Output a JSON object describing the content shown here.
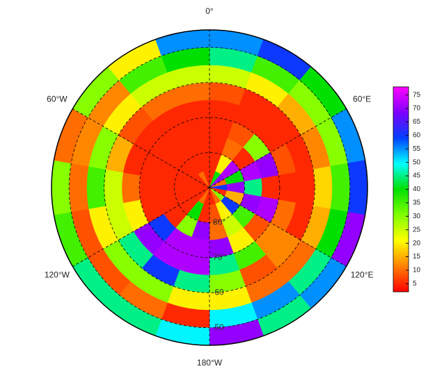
{
  "chart_data": {
    "type": "polar_heatmap",
    "lon_edges": [
      0,
      20,
      40,
      60,
      80,
      100,
      120,
      140,
      160,
      180,
      200,
      220,
      240,
      260,
      280,
      300,
      320,
      340,
      360
    ],
    "lat_edges": [
      90,
      85,
      80,
      75,
      70,
      65,
      60,
      55,
      50,
      45
    ],
    "values": [
      [
        5,
        40,
        70,
        10,
        60,
        5,
        30,
        10,
        5,
        5,
        10,
        5,
        5,
        5,
        5,
        5,
        10,
        5
      ],
      [
        5,
        20,
        72,
        40,
        70,
        15,
        60,
        20,
        8,
        5,
        40,
        5,
        5,
        5,
        5,
        5,
        5,
        5
      ],
      [
        5,
        10,
        5,
        72,
        45,
        70,
        35,
        25,
        10,
        70,
        30,
        5,
        5,
        5,
        5,
        5,
        5,
        5
      ],
      [
        5,
        8,
        30,
        70,
        5,
        72,
        8,
        20,
        70,
        72,
        72,
        60,
        5,
        5,
        5,
        5,
        5,
        5
      ],
      [
        5,
        5,
        5,
        8,
        5,
        10,
        12,
        35,
        45,
        72,
        72,
        70,
        20,
        10,
        5,
        5,
        5,
        5
      ],
      [
        8,
        5,
        5,
        5,
        5,
        5,
        12,
        8,
        30,
        45,
        60,
        45,
        25,
        25,
        15,
        8,
        10,
        10
      ],
      [
        25,
        20,
        15,
        12,
        18,
        15,
        10,
        10,
        20,
        20,
        30,
        30,
        20,
        35,
        30,
        20,
        25,
        25
      ],
      [
        45,
        35,
        30,
        30,
        35,
        40,
        45,
        55,
        50,
        5,
        10,
        8,
        8,
        10,
        12,
        12,
        35,
        40
      ],
      [
        55,
        60,
        40,
        55,
        60,
        70,
        55,
        45,
        70,
        50,
        45,
        45,
        35,
        30,
        10,
        30,
        20,
        55
      ]
    ],
    "meridians": [
      {
        "value": 0,
        "label": "0°"
      },
      {
        "value": 60,
        "label": "60°E"
      },
      {
        "value": 120,
        "label": "120°E"
      },
      {
        "value": 180,
        "label": "180°W"
      },
      {
        "value": 240,
        "label": "120°W"
      },
      {
        "value": 300,
        "label": "60°W"
      }
    ],
    "parallels": [
      {
        "value": 80,
        "label": "80°"
      },
      {
        "value": 70,
        "label": "70°"
      },
      {
        "value": 60,
        "label": "60"
      },
      {
        "value": 50,
        "label": "50"
      }
    ],
    "colormap": [
      "#ff0000",
      "#ff8000",
      "#ffff00",
      "#80ff00",
      "#00e000",
      "#00ffff",
      "#0040ff",
      "#8000ff",
      "#ff00ff"
    ],
    "clim": [
      2,
      78
    ],
    "colorbar_ticks": [
      5,
      10,
      15,
      20,
      25,
      30,
      35,
      40,
      45,
      50,
      55,
      60,
      65,
      70,
      75
    ]
  }
}
